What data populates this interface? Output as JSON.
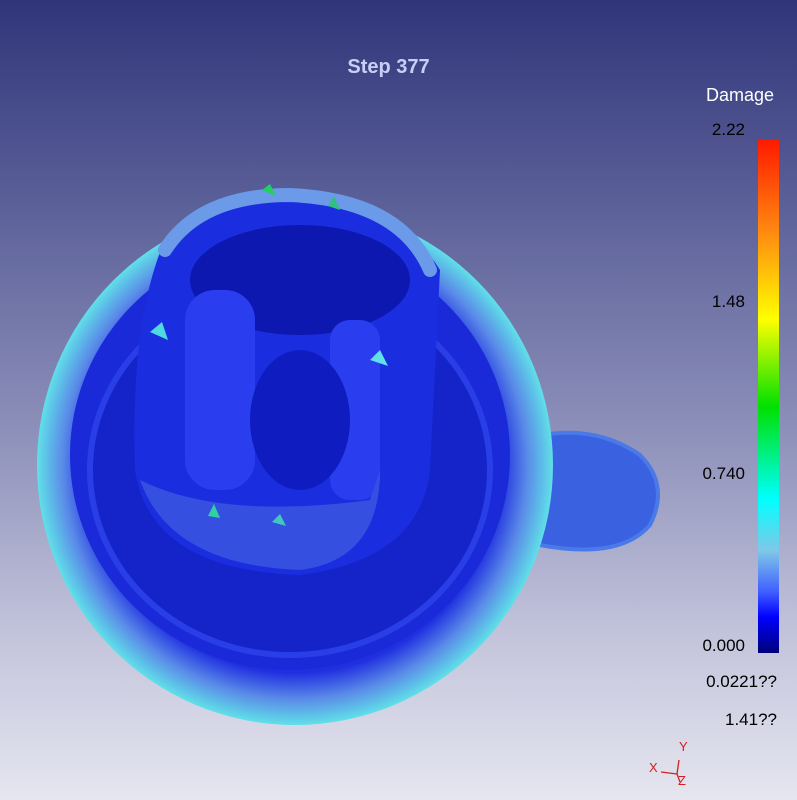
{
  "title": "Step  377",
  "colorbar": {
    "title": "Damage",
    "ticks": [
      "2.22",
      "1.48",
      "0.740",
      "0.000"
    ],
    "colors": [
      "#ff1a00",
      "#ffff00",
      "#00e000",
      "#00ffff",
      "#0000ff",
      "#00007a"
    ]
  },
  "readouts": [
    "0.0221??",
    "1.41??"
  ],
  "axes": {
    "x": "X",
    "y": "Y",
    "z": "Z",
    "color": "#d02020"
  }
}
